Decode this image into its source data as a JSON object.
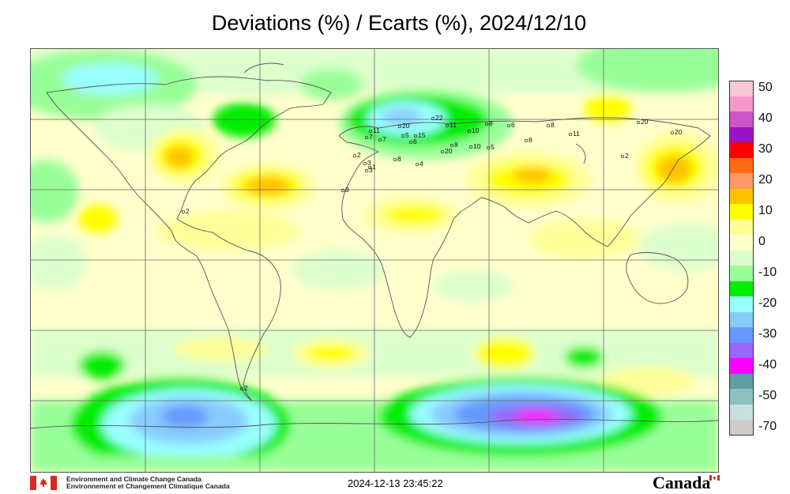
{
  "title": "Deviations (%) / Ecarts (%), 2024/12/10",
  "legend": {
    "entries": [
      {
        "label": "50",
        "color": "#f9c9d3"
      },
      {
        "label": "",
        "color": "#f59ac8"
      },
      {
        "label": "40",
        "color": "#cc55c6"
      },
      {
        "label": "",
        "color": "#9a14c4"
      },
      {
        "label": "30",
        "color": "#ff0000"
      },
      {
        "label": "",
        "color": "#ff6a13"
      },
      {
        "label": "20",
        "color": "#ff9966"
      },
      {
        "label": "",
        "color": "#ffc200"
      },
      {
        "label": "10",
        "color": "#ffff00"
      },
      {
        "label": "",
        "color": "#ffff99"
      },
      {
        "label": "0",
        "color": "#ffffcc"
      },
      {
        "label": "",
        "color": "#ddffcc"
      },
      {
        "label": "-10",
        "color": "#99ff99"
      },
      {
        "label": "",
        "color": "#00ee00"
      },
      {
        "label": "-20",
        "color": "#99ffff"
      },
      {
        "label": "",
        "color": "#88ccff"
      },
      {
        "label": "-30",
        "color": "#6699ff"
      },
      {
        "label": "",
        "color": "#9966ff"
      },
      {
        "label": "-40",
        "color": "#ff00ff"
      },
      {
        "label": "",
        "color": "#5f9ea0"
      },
      {
        "label": "-50",
        "color": "#8fc0c0"
      },
      {
        "label": "",
        "color": "#c8e0e0"
      },
      {
        "label": "-70",
        "color": "#cccccc"
      }
    ]
  },
  "station_values": [
    "22",
    "20",
    "11",
    "11",
    "10",
    "8",
    "8",
    "8",
    "11",
    "7",
    "20",
    "5",
    "15",
    "7",
    "6",
    "20",
    "8",
    "10",
    "6",
    "5",
    "20",
    "2",
    "3",
    "3",
    "1",
    "8",
    "4",
    "8",
    "2",
    "2",
    "2"
  ],
  "footer": {
    "org_en": "Environment and Climate Change Canada",
    "org_fr": "Environnement et Changement Climatique Canada",
    "timestamp": "2024-12-13 23:45:22",
    "wordmark": "Canada"
  }
}
